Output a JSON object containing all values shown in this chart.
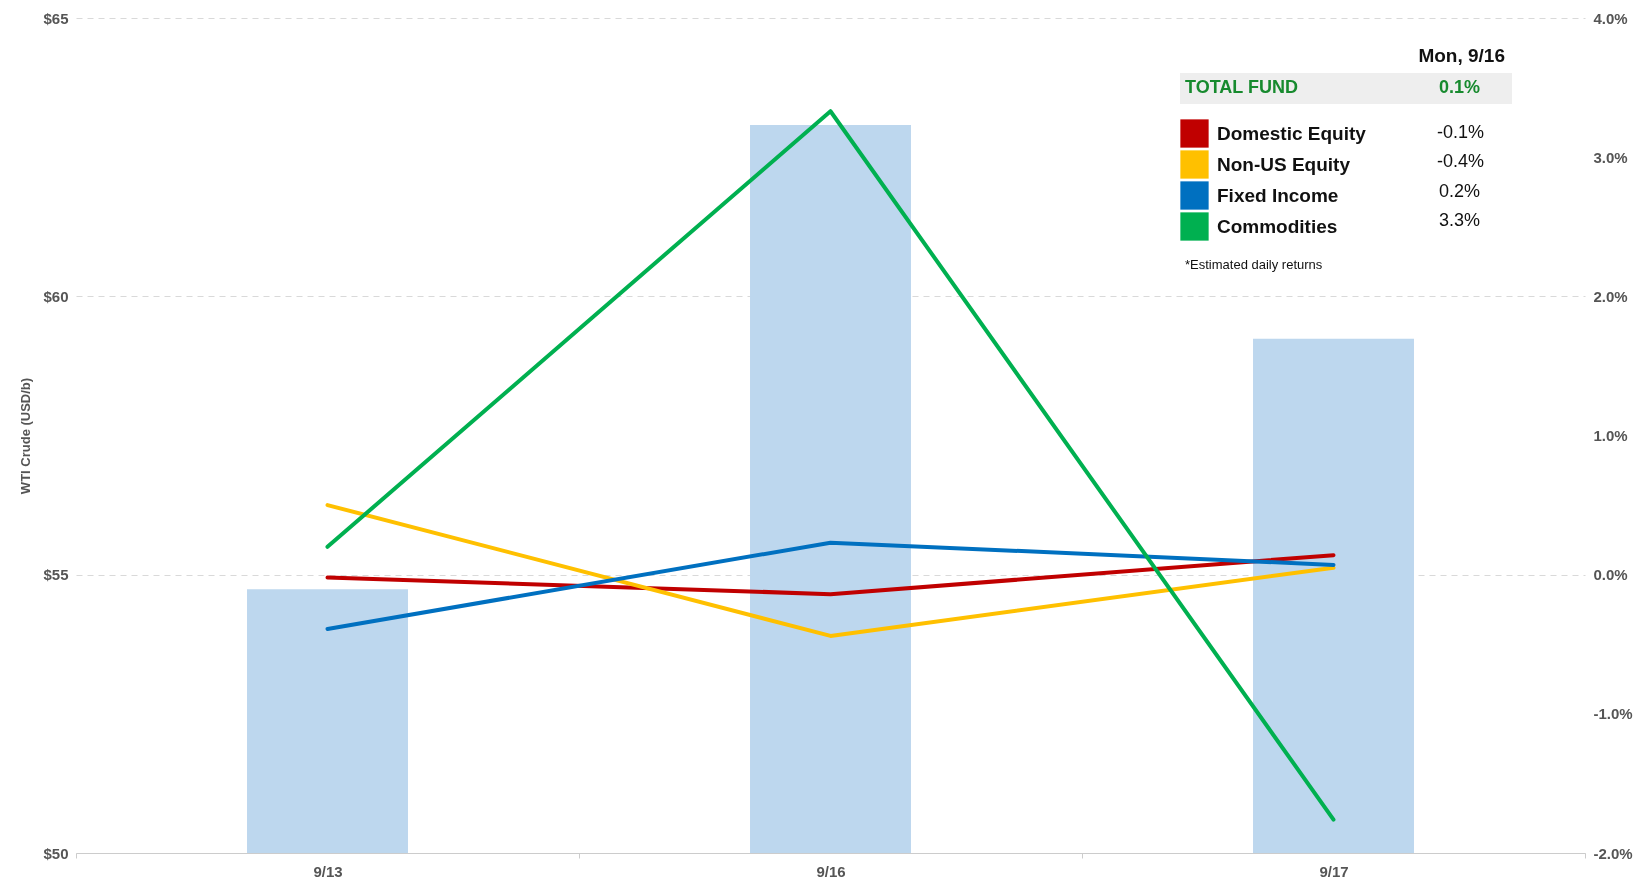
{
  "chart_data": {
    "type": "bar",
    "categories": [
      "9/13",
      "9/16",
      "9/17"
    ],
    "ylabel": "WTI Crude (USD/b)",
    "ylim": [
      50,
      65
    ],
    "yticks": [
      {
        "value": 50,
        "label": "$50"
      },
      {
        "value": 55,
        "label": "$55"
      },
      {
        "value": 60,
        "label": "$60"
      },
      {
        "value": 65,
        "label": "$65"
      }
    ],
    "y2lim": [
      -2,
      4
    ],
    "y2ticks": [
      {
        "value": -2,
        "label": "-2.0%"
      },
      {
        "value": -1,
        "label": "-1.0%"
      },
      {
        "value": 0,
        "label": "0.0%"
      },
      {
        "value": 1,
        "label": "1.0%"
      },
      {
        "value": 2,
        "label": "2.0%"
      },
      {
        "value": 3,
        "label": "3.0%"
      },
      {
        "value": 4,
        "label": "4.0%"
      }
    ],
    "grid": "y",
    "legend": "top right",
    "line_style": "solid",
    "marker": "none",
    "series": [
      {
        "color": "#bdd7ee",
        "values": [
          54.74,
          63.08,
          59.24
        ]
      },
      {
        "type": "line",
        "axis": "y2",
        "name": "Domestic Equity",
        "color": "#c00000",
        "values": [
          -0.02,
          -0.14,
          0.14
        ]
      },
      {
        "type": "line",
        "axis": "y2",
        "name": "Non-US Equity",
        "color": "#ffc000",
        "values": [
          0.5,
          -0.44,
          0.05
        ]
      },
      {
        "type": "line",
        "axis": "y2",
        "name": "Fixed Income",
        "color": "#0070c0",
        "values": [
          -0.39,
          0.23,
          0.07
        ]
      },
      {
        "type": "line",
        "axis": "y2",
        "name": "Commodities",
        "color": "#00b050",
        "values": [
          0.2,
          3.33,
          -1.76
        ]
      }
    ],
    "annotations": [
      "Mon, 9/16",
      "TOTAL FUND",
      "0.1%",
      "-0.1%",
      "-0.4%",
      "0.2%",
      "3.3%",
      "*Estimated daily returns"
    ]
  }
}
